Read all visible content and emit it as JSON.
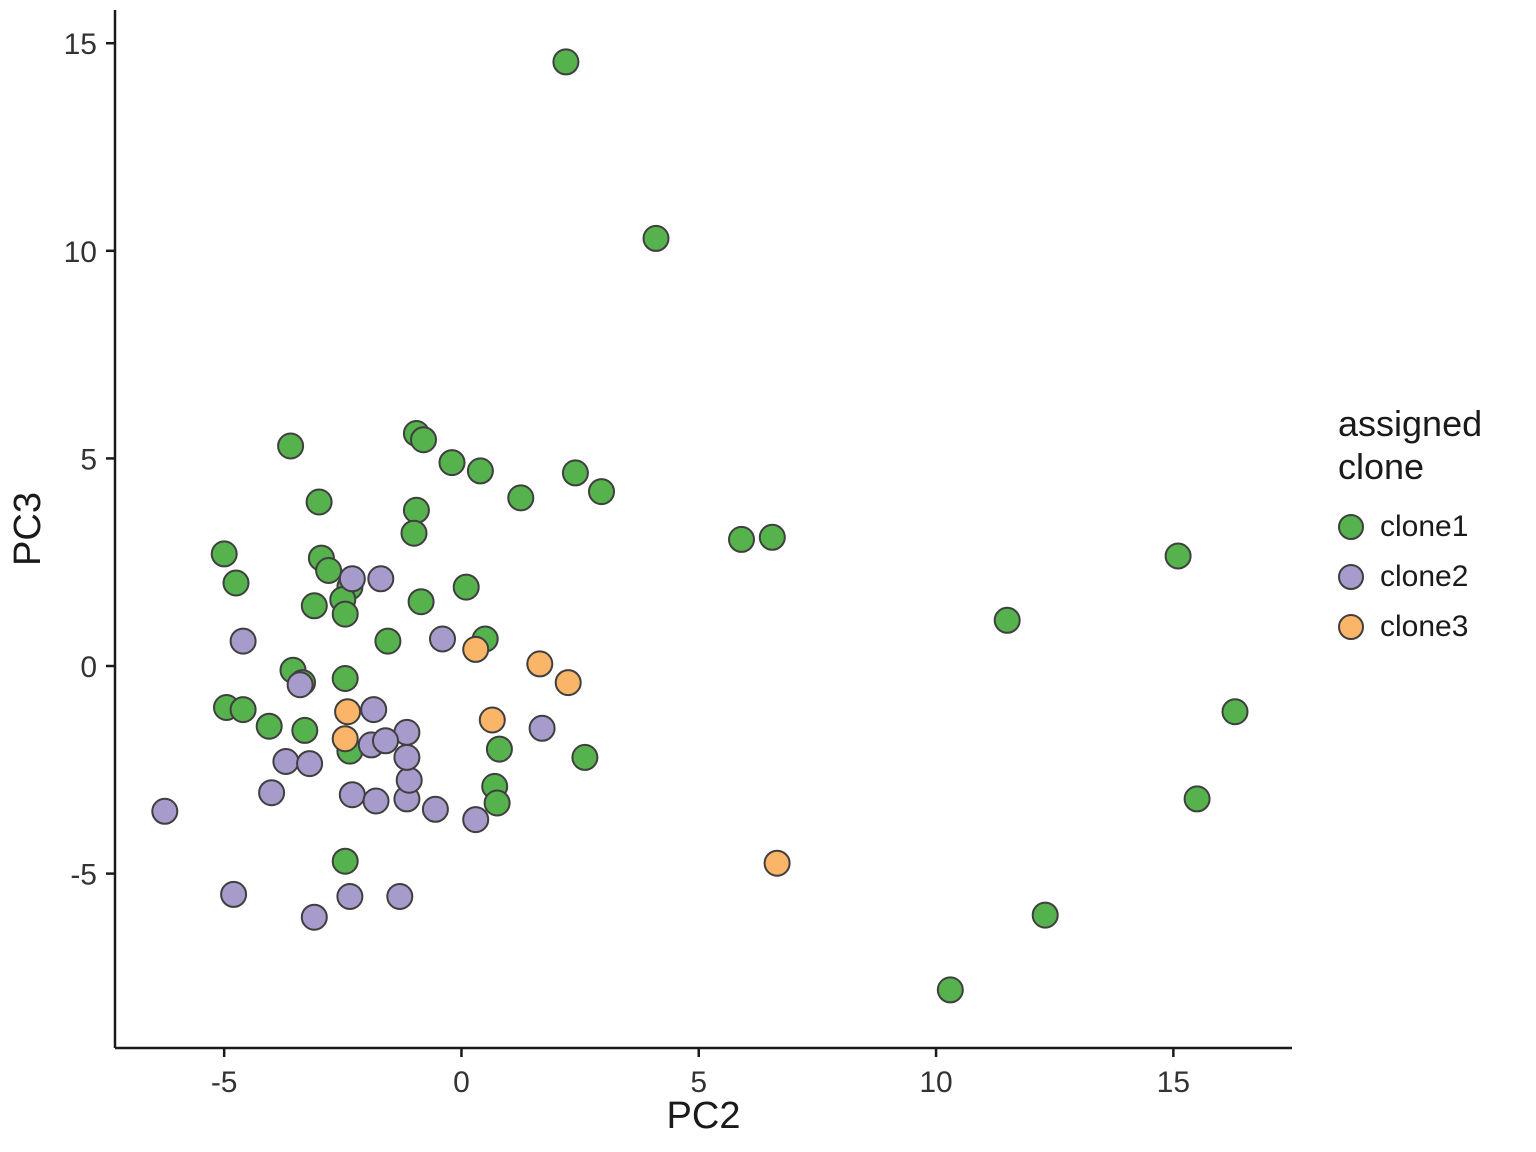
{
  "chart_data": {
    "type": "scatter",
    "title": "",
    "xlabel": "PC2",
    "ylabel": "PC3",
    "xlim": [
      -7.3,
      17.5
    ],
    "ylim": [
      -9.2,
      15.8
    ],
    "xticks": [
      -5,
      0,
      5,
      10,
      15
    ],
    "yticks": [
      -5,
      0,
      5,
      10,
      15
    ],
    "grid": false,
    "legend_title": "assigned clone",
    "legend_position": "right",
    "point_style": {
      "radius": 12.5,
      "stroke": "#3f3f3f",
      "stroke_width": 2
    },
    "series": [
      {
        "name": "clone1",
        "color": "#56B24C",
        "points": [
          [
            2.2,
            14.55
          ],
          [
            4.1,
            10.3
          ],
          [
            -3.6,
            5.3
          ],
          [
            -0.95,
            5.6
          ],
          [
            -0.8,
            5.45
          ],
          [
            -0.2,
            4.9
          ],
          [
            0.4,
            4.7
          ],
          [
            2.4,
            4.65
          ],
          [
            2.95,
            4.2
          ],
          [
            1.25,
            4.05
          ],
          [
            -3.0,
            3.95
          ],
          [
            -0.95,
            3.75
          ],
          [
            -1.0,
            3.2
          ],
          [
            5.9,
            3.05
          ],
          [
            6.55,
            3.1
          ],
          [
            15.1,
            2.65
          ],
          [
            -5.0,
            2.7
          ],
          [
            -2.95,
            2.6
          ],
          [
            -2.8,
            2.3
          ],
          [
            -4.75,
            2.0
          ],
          [
            -2.35,
            1.9
          ],
          [
            -2.5,
            1.6
          ],
          [
            -3.1,
            1.45
          ],
          [
            -2.45,
            1.25
          ],
          [
            -0.85,
            1.55
          ],
          [
            0.1,
            1.9
          ],
          [
            11.5,
            1.1
          ],
          [
            -1.55,
            0.6
          ],
          [
            0.5,
            0.65
          ],
          [
            -3.55,
            -0.1
          ],
          [
            -3.35,
            -0.4
          ],
          [
            -2.45,
            -0.3
          ],
          [
            -4.95,
            -1.0
          ],
          [
            -4.6,
            -1.05
          ],
          [
            -4.05,
            -1.45
          ],
          [
            -3.3,
            -1.55
          ],
          [
            -2.35,
            -2.05
          ],
          [
            0.8,
            -2.0
          ],
          [
            2.6,
            -2.2
          ],
          [
            0.7,
            -2.9
          ],
          [
            0.75,
            -3.3
          ],
          [
            16.3,
            -1.1
          ],
          [
            15.5,
            -3.2
          ],
          [
            -2.45,
            -4.7
          ],
          [
            12.3,
            -6.0
          ],
          [
            10.3,
            -7.8
          ]
        ]
      },
      {
        "name": "clone2",
        "color": "#A79BCB",
        "points": [
          [
            -6.25,
            -3.5
          ],
          [
            -4.8,
            -5.5
          ],
          [
            -3.1,
            -6.05
          ],
          [
            -2.35,
            -5.55
          ],
          [
            -1.3,
            -5.55
          ],
          [
            -4.0,
            -3.05
          ],
          [
            -3.7,
            -2.3
          ],
          [
            -3.2,
            -2.35
          ],
          [
            -2.3,
            -3.1
          ],
          [
            -1.8,
            -3.25
          ],
          [
            -1.15,
            -3.2
          ],
          [
            -0.55,
            -3.45
          ],
          [
            0.3,
            -3.7
          ],
          [
            -1.1,
            -2.75
          ],
          [
            -1.15,
            -2.2
          ],
          [
            -1.15,
            -1.6
          ],
          [
            -1.9,
            -1.9
          ],
          [
            -1.6,
            -1.8
          ],
          [
            -1.85,
            -1.05
          ],
          [
            1.7,
            -1.5
          ],
          [
            -0.4,
            0.65
          ],
          [
            -2.3,
            2.1
          ],
          [
            -1.7,
            2.1
          ],
          [
            -4.6,
            0.6
          ],
          [
            -3.4,
            -0.45
          ]
        ]
      },
      {
        "name": "clone3",
        "color": "#FBB568",
        "points": [
          [
            0.3,
            0.4
          ],
          [
            1.65,
            0.05
          ],
          [
            2.25,
            -0.4
          ],
          [
            -2.4,
            -1.1
          ],
          [
            -2.45,
            -1.75
          ],
          [
            0.65,
            -1.3
          ],
          [
            6.65,
            -4.75
          ]
        ]
      }
    ]
  }
}
